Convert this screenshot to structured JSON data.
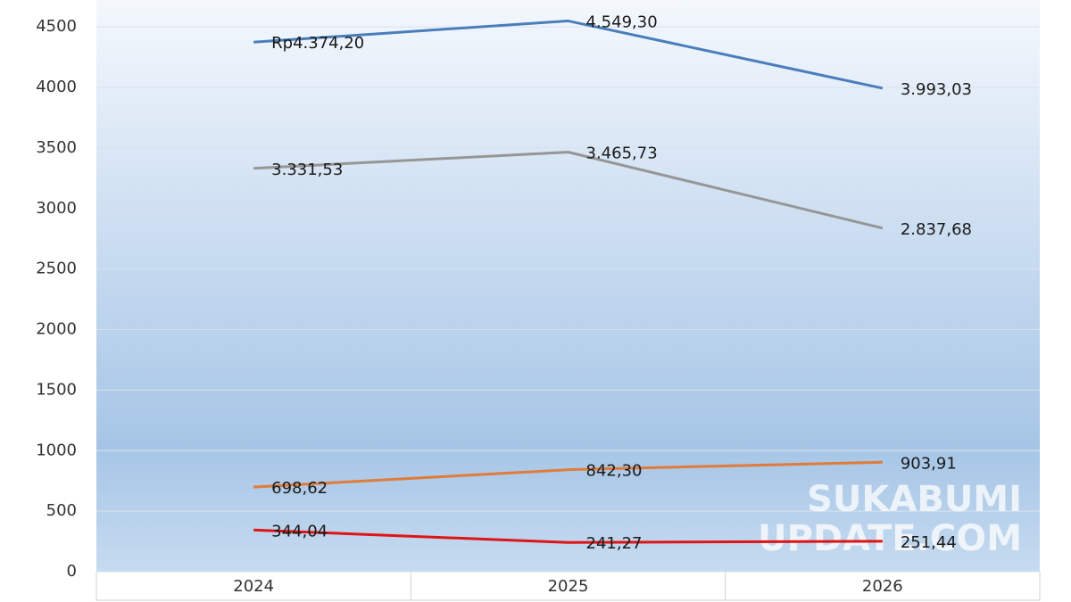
{
  "chart_data": {
    "type": "line",
    "categories": [
      "2024",
      "2025",
      "2026"
    ],
    "series": [
      {
        "color": "#4a7ebb",
        "values": [
          4374.2,
          4549.3,
          3993.03
        ],
        "value_labels": [
          "Rp4.374,20",
          "4.549,30",
          "3.993,03"
        ]
      },
      {
        "color": "#969696",
        "values": [
          3331.53,
          3465.73,
          2837.68
        ],
        "value_labels": [
          "3.331,53",
          "3.465,73",
          "2.837,68"
        ]
      },
      {
        "color": "#e07b39",
        "values": [
          698.62,
          842.3,
          903.91
        ],
        "value_labels": [
          "698,62",
          "842,30",
          "903,91"
        ]
      },
      {
        "color": "#e01414",
        "values": [
          344.04,
          241.27,
          251.44
        ],
        "value_labels": [
          "344,04",
          "241,27",
          "251,44"
        ]
      }
    ],
    "ylim": [
      0,
      4700
    ],
    "yticks": [
      0,
      500,
      1000,
      1500,
      2000,
      2500,
      3000,
      3500,
      4000,
      4500
    ],
    "grid": true,
    "watermark": [
      "SUKABUMI",
      "UPDATE.COM"
    ]
  }
}
